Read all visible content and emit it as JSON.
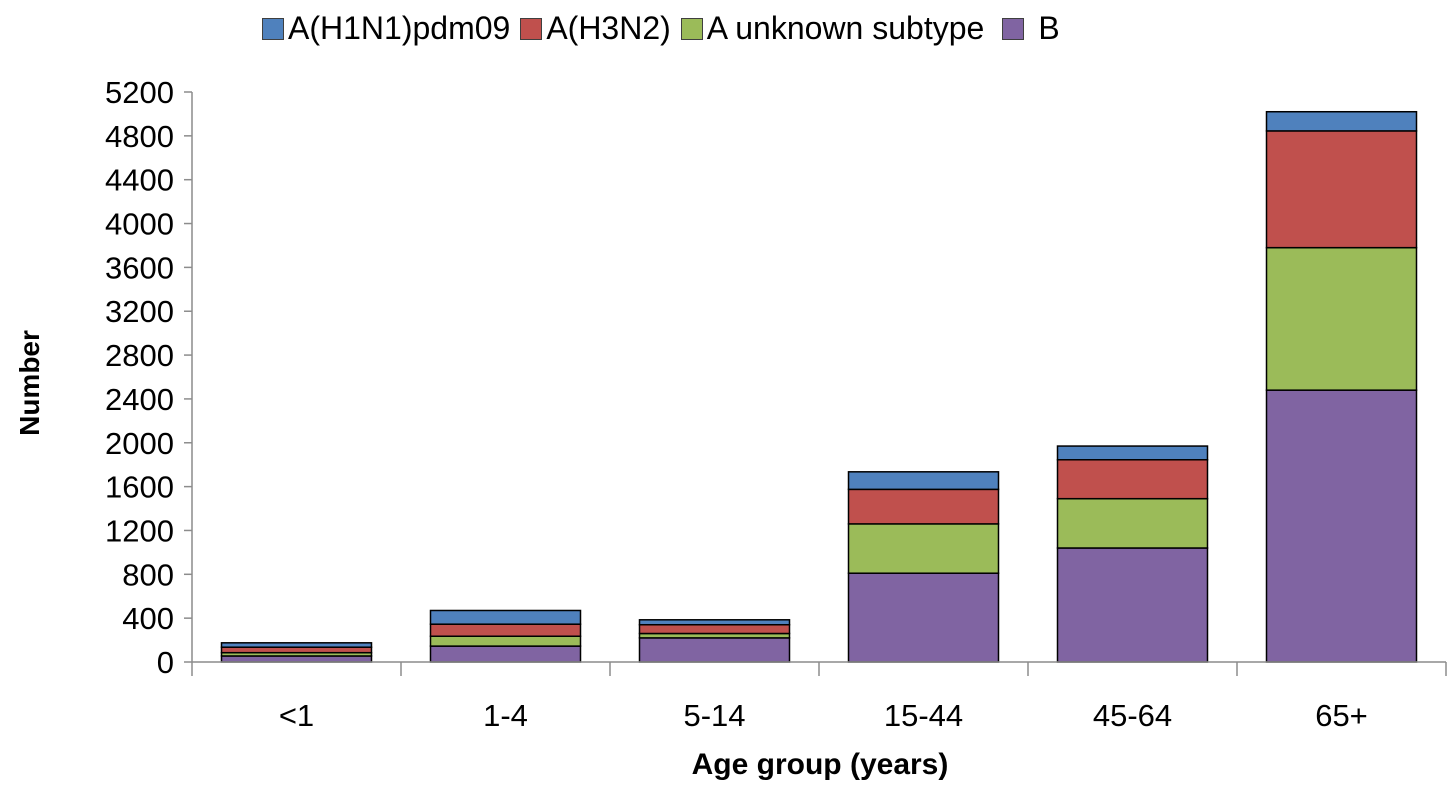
{
  "chart_data": {
    "type": "bar",
    "stacked": true,
    "xlabel": "Age group (years)",
    "ylabel": "Number",
    "ylim": [
      0,
      5200
    ],
    "ytick_step": 400,
    "grid": false,
    "legend_position": "top",
    "categories": [
      "<1",
      "1-4",
      "5-14",
      "15-44",
      "45-64",
      "65+"
    ],
    "series": [
      {
        "name": "B",
        "color": "#8064a2",
        "values": [
          55,
          145,
          220,
          810,
          1040,
          2480
        ]
      },
      {
        "name": "A unknown subtype",
        "color": "#9bbb59",
        "values": [
          30,
          90,
          40,
          450,
          450,
          1300
        ]
      },
      {
        "name": "A(H3N2)",
        "color": "#c0504d",
        "values": [
          50,
          110,
          80,
          315,
          355,
          1065
        ]
      },
      {
        "name": "A(H1N1)pdm09",
        "color": "#4f81bd",
        "values": [
          40,
          125,
          45,
          160,
          125,
          175
        ]
      }
    ],
    "legend_order": [
      "A(H1N1)pdm09",
      "A(H3N2)",
      "A unknown subtype",
      "B"
    ]
  }
}
